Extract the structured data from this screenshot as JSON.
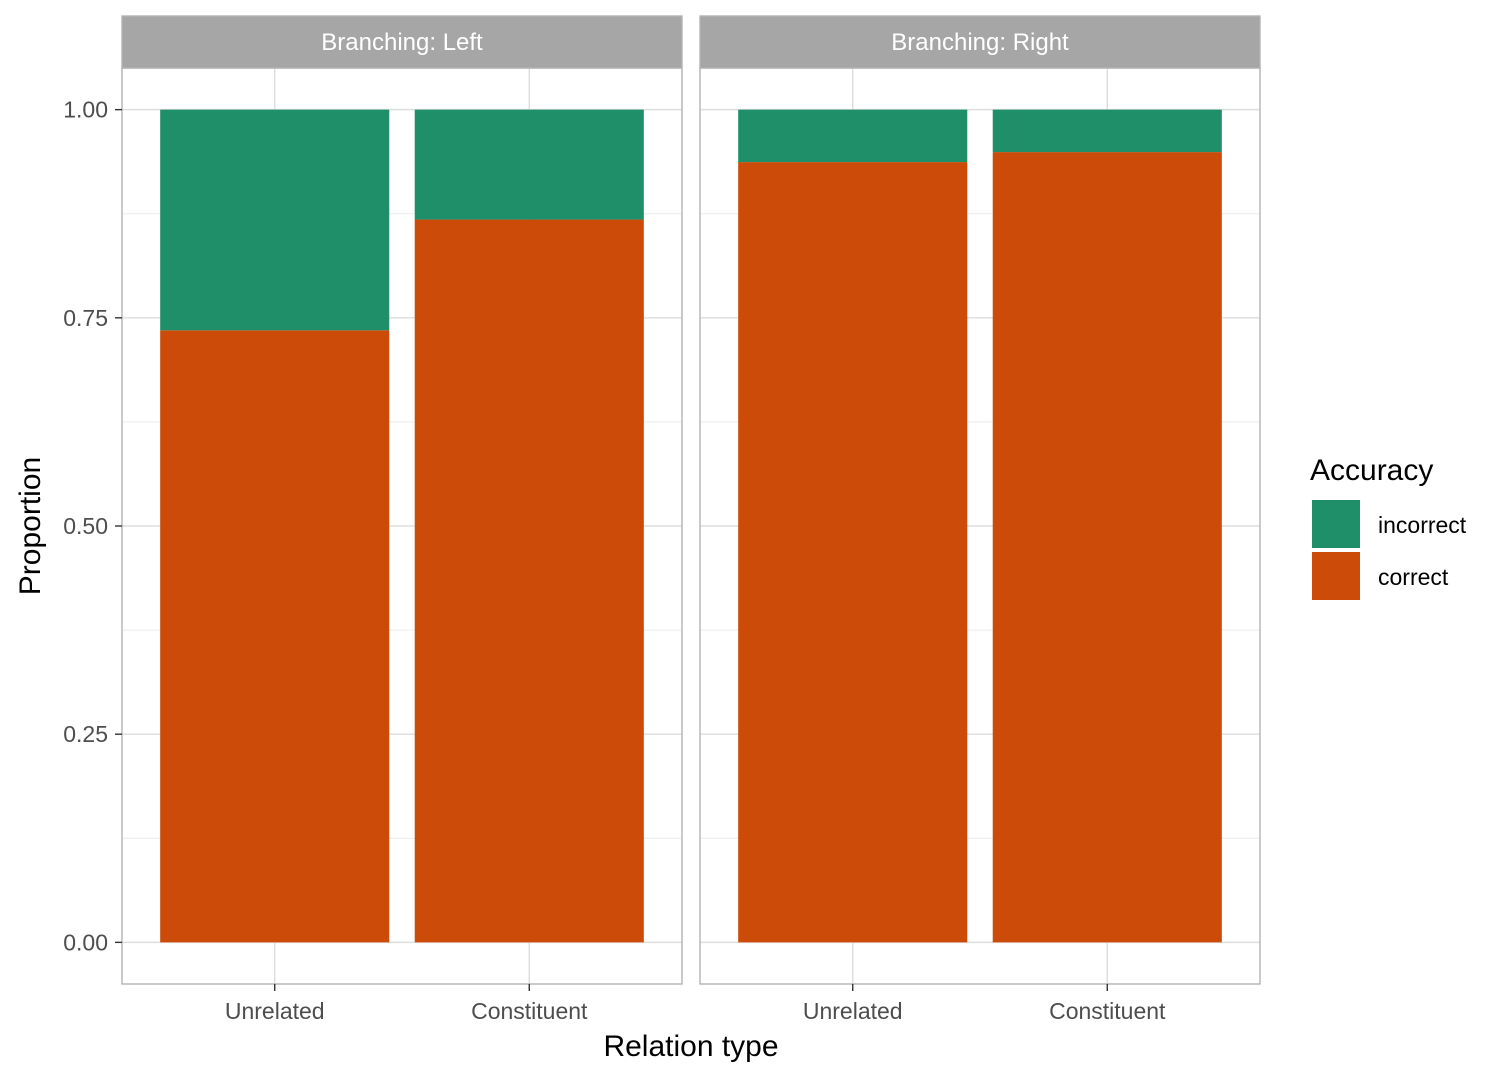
{
  "chart_data": {
    "type": "bar",
    "stacked": true,
    "facet_label_prefix": "Branching: ",
    "panels": [
      {
        "strip_label": "Branching: Left",
        "categories": [
          "Unrelated",
          "Constituent"
        ],
        "series": [
          {
            "name": "correct",
            "values": [
              0.735,
              0.868
            ]
          },
          {
            "name": "incorrect",
            "values": [
              0.265,
              0.132
            ]
          }
        ]
      },
      {
        "strip_label": "Branching: Right",
        "categories": [
          "Unrelated",
          "Constituent"
        ],
        "series": [
          {
            "name": "correct",
            "values": [
              0.937,
              0.949
            ]
          },
          {
            "name": "incorrect",
            "values": [
              0.063,
              0.051
            ]
          }
        ]
      }
    ],
    "xlabel": "Relation type",
    "ylabel": "Proportion",
    "ylim": [
      -0.05,
      1.05
    ],
    "yticks": [
      0,
      0.25,
      0.5,
      0.75,
      1.0
    ],
    "ytick_labels": [
      "0.00",
      "0.25",
      "0.50",
      "0.75",
      "1.00"
    ],
    "legend": {
      "title": "Accuracy",
      "position": "right",
      "entries": [
        "incorrect",
        "correct"
      ]
    },
    "colors": {
      "correct": "#cc4b09",
      "incorrect": "#1e8f68"
    },
    "grid": true
  }
}
